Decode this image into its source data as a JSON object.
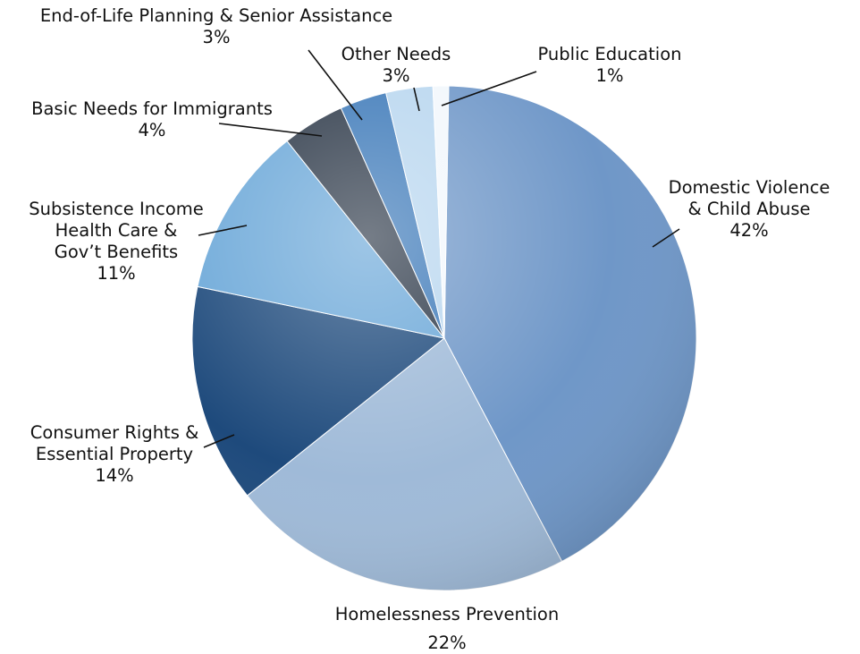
{
  "chart_data": {
    "type": "pie",
    "title": "",
    "slices": [
      {
        "label": "Domestic Violence & Child Abuse",
        "label_lines": [
          "Domestic Violence",
          "& Child Abuse"
        ],
        "value": 42,
        "value_label": "42%",
        "color": "#6f97c8"
      },
      {
        "label": "Homelessness Prevention",
        "label_lines": [
          "Homelessness Prevention"
        ],
        "value": 22,
        "value_label": "22%",
        "color": "#9fbad8"
      },
      {
        "label": "Consumer Rights & Essential Property",
        "label_lines": [
          "Consumer Rights &",
          "Essential Property"
        ],
        "value": 14,
        "value_label": "14%",
        "color": "#1e4a7c"
      },
      {
        "label": "Subsistence Income Health Care & Gov't Benefits",
        "label_lines": [
          "Subsistence Income",
          "Health Care &",
          "Gov’t Benefits"
        ],
        "value": 11,
        "value_label": "11%",
        "color": "#6aa7d8"
      },
      {
        "label": "Basic Needs for Immigrants",
        "label_lines": [
          "Basic Needs for Immigrants"
        ],
        "value": 4,
        "value_label": "4%",
        "color": "#2b3747"
      },
      {
        "label": "End-of-Life Planning & Senior Assistance",
        "label_lines": [
          "End-of-Life Planning & Senior Assistance"
        ],
        "value": 3,
        "value_label": "3%",
        "color": "#3b78b8"
      },
      {
        "label": "Other Needs",
        "label_lines": [
          "Other Needs"
        ],
        "value": 3,
        "value_label": "3%",
        "color": "#b8d6ef"
      },
      {
        "label": "Public Education",
        "label_lines": [
          "Public Education"
        ],
        "value": 1,
        "value_label": "1%",
        "color": "#f2f7fc"
      }
    ]
  }
}
